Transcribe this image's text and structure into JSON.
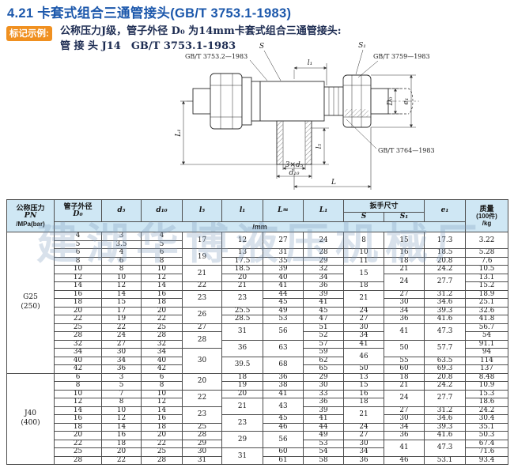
{
  "page": {
    "title": "4.21 卡套式组合三通管接头(GB/T 3753.1-1983)",
    "badge": "标记示例:",
    "example_line1": "公称压力J级，管子外径 D₀ 为14mm卡套式组合三通管接头:",
    "example_line2": "管 接 头 J14　GB/T 3753.1-1983"
  },
  "watermark": "建湖华博液压机械厂",
  "drawing": {
    "labels": {
      "s": "S",
      "s1": "S₁",
      "std_left": "GB/T 3753.2—1983",
      "std_right": "GB/T 3759—1983",
      "std_bottom": "GB/T 3764—1983",
      "dim_l1": "l₁",
      "dim_L1": "L₁",
      "dim_D0": "D₀",
      "dim_e1": "e₁",
      "dim_l5": "l₅",
      "dim_3d5": "3×d₅",
      "dim_d10": "d₁₀",
      "dim_L": "L"
    }
  },
  "table": {
    "header": {
      "pressure": [
        "公称压力",
        "PN",
        "/MPa(bar)"
      ],
      "d0_line1": "管子外径",
      "d0_line2": "D₀",
      "d5": "d₅",
      "d10": "d₁₀",
      "l5": "l₅",
      "l1": "l₁",
      "L": "L≈",
      "L1": "L₁",
      "wrench": "扳手尺寸",
      "S": "S",
      "S1": "S₁",
      "e1": "e₁",
      "mass": [
        "质量",
        "(100件)",
        "/kg"
      ],
      "unit": "/mm"
    },
    "sections": [
      {
        "pn": "G25",
        "pn2": "(250)",
        "rows": [
          [
            "4",
            "3",
            "4",
            [
              "17",
              2
            ],
            [
              "12",
              2
            ],
            [
              "27",
              2
            ],
            [
              "24",
              2
            ],
            [
              "8",
              2
            ],
            [
              "15",
              2
            ],
            [
              "17.3",
              2
            ],
            [
              "3.22",
              2
            ]
          ],
          [
            "5",
            "3.5",
            "5"
          ],
          [
            "6",
            "4",
            "6",
            [
              "19",
              2
            ],
            "13",
            "31",
            "28",
            "10",
            "16",
            "18.5",
            "5.28"
          ],
          [
            "8",
            "6",
            "8",
            "17.5",
            "35",
            "29",
            "11",
            "18",
            "20.8",
            "7.6"
          ],
          [
            "10",
            "8",
            "10",
            [
              "21",
              2
            ],
            "18.5",
            "39",
            "32",
            [
              "15",
              2
            ],
            "21",
            "24.2",
            "10.5"
          ],
          [
            "12",
            "10",
            "12",
            "20",
            "40",
            "34",
            [
              "24",
              2
            ],
            [
              "27.7",
              2
            ],
            "13.1"
          ],
          [
            "14",
            "12",
            "14",
            "22",
            "21",
            "41",
            "36",
            "18",
            "15.2"
          ],
          [
            "16",
            "14",
            "16",
            [
              "23",
              2
            ],
            [
              "23",
              2
            ],
            "44",
            "39",
            [
              "21",
              2
            ],
            "27",
            "31.2",
            "18.9"
          ],
          [
            "18",
            "15",
            "18",
            "45",
            "41",
            "30",
            "34.6",
            "25.1"
          ],
          [
            "20",
            "17",
            "20",
            [
              "26",
              2
            ],
            "25.5",
            "49",
            "45",
            "24",
            "34",
            "39.3",
            "32.6"
          ],
          [
            "22",
            "19",
            "22",
            "28.5",
            "53",
            "47",
            "27",
            "36",
            "41.6",
            "41.8"
          ],
          [
            "25",
            "22",
            "25",
            "27",
            [
              "31",
              2
            ],
            [
              "56",
              2
            ],
            "51",
            "30",
            [
              "41",
              2
            ],
            [
              "47.3",
              2
            ],
            "56.7"
          ],
          [
            "28",
            "24",
            "28",
            [
              "28",
              2
            ],
            "52",
            "34",
            "54"
          ],
          [
            "32",
            "27",
            "32",
            [
              "36",
              2
            ],
            [
              "63",
              2
            ],
            "57",
            "41",
            [
              "50",
              2
            ],
            [
              "57.7",
              2
            ],
            "91.1"
          ],
          [
            "34",
            "30",
            "34",
            [
              "30",
              3
            ],
            "59",
            [
              "46",
              2
            ],
            "94"
          ],
          [
            "40",
            "34",
            "40",
            [
              "39.5",
              2
            ],
            [
              "68",
              2
            ],
            "62",
            "55",
            "63.5",
            "114"
          ],
          [
            "42",
            "36",
            "42",
            "65",
            "50",
            "60",
            "69.3",
            "137"
          ]
        ]
      },
      {
        "pn": "J40",
        "pn2": "(400)",
        "rows": [
          [
            "6",
            "3",
            "6",
            [
              "20",
              2
            ],
            "18",
            "36",
            "29",
            "13",
            "18",
            "20.8",
            "8.48"
          ],
          [
            "8",
            "5",
            "8",
            "19",
            "38",
            "30",
            "15",
            "21",
            "24.2",
            "10.9"
          ],
          [
            "10",
            "7",
            "10",
            [
              "22",
              2
            ],
            "20",
            "41",
            "33",
            "16",
            [
              "24",
              2
            ],
            [
              "27.7",
              2
            ],
            "15.3"
          ],
          [
            "12",
            "8",
            "12",
            [
              "21",
              2
            ],
            [
              "43",
              2
            ],
            "36",
            "18",
            "18.6"
          ],
          [
            "14",
            "10",
            "14",
            [
              "23",
              2
            ],
            "39",
            [
              "21",
              2
            ],
            "27",
            "31.2",
            "24.2"
          ],
          [
            "16",
            "12",
            "16",
            [
              "23",
              2
            ],
            "45",
            "41",
            "30",
            "34.6",
            "30.4"
          ],
          [
            "18",
            "14",
            "18",
            "25",
            "46",
            "44",
            "24",
            "34",
            "39.3",
            "35.1"
          ],
          [
            "20",
            "16",
            "20",
            "28",
            [
              "29",
              2
            ],
            [
              "56",
              2
            ],
            "49",
            "27",
            "36",
            "41.6",
            "50.3"
          ],
          [
            "22",
            "18",
            "22",
            "29",
            "53",
            "30",
            [
              "41",
              2
            ],
            [
              "47.3",
              2
            ],
            "67.4"
          ],
          [
            "25",
            "20",
            "25",
            "30",
            [
              "31",
              2
            ],
            "60",
            "54",
            "34",
            "71.6"
          ],
          [
            "28",
            "22",
            "28",
            "31",
            "61",
            "58",
            "36",
            "46",
            "53.1",
            "93.4"
          ]
        ]
      }
    ]
  }
}
